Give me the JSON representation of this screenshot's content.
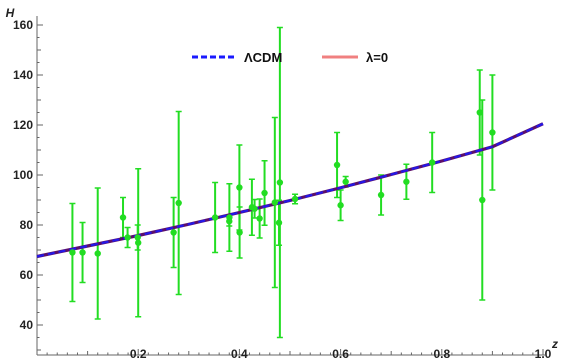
{
  "chart_data": {
    "type": "scatter",
    "title": "",
    "xlabel": "z",
    "ylabel": "H",
    "xlim": [
      0,
      1.0
    ],
    "ylim": [
      28,
      162
    ],
    "xticks": [
      0.2,
      0.4,
      0.6,
      0.8,
      1.0
    ],
    "xtick_labels": [
      "0.2",
      "0.4",
      "0.6",
      "0.8",
      "1.0"
    ],
    "yticks": [
      40,
      60,
      80,
      100,
      120,
      140,
      160
    ],
    "ytick_labels": [
      "40",
      "60",
      "80",
      "100",
      "120",
      "140",
      "160"
    ],
    "grid": false,
    "legend_position": "top-center",
    "colors": {
      "lcdm": "#1a1aff",
      "lambda0": "#f08080",
      "data": "#22dd22",
      "overlap": "#5c0f6a",
      "axis": "#666666"
    },
    "series": [
      {
        "name": "ΛCDM",
        "style": "dashed",
        "x": [
          0.0,
          0.1,
          0.2,
          0.3,
          0.4,
          0.5,
          0.6,
          0.7,
          0.8,
          0.9,
          1.0
        ],
        "y": [
          67.4,
          71.6,
          75.8,
          80.3,
          85.0,
          89.8,
          94.9,
          100.2,
          105.6,
          111.3,
          120.5
        ]
      },
      {
        "name": "λ=0",
        "style": "solid",
        "x": [
          0.0,
          0.1,
          0.2,
          0.3,
          0.4,
          0.5,
          0.6,
          0.7,
          0.8,
          0.9,
          1.0
        ],
        "y": [
          67.4,
          71.6,
          75.8,
          80.3,
          85.0,
          89.8,
          94.9,
          100.2,
          105.6,
          111.3,
          120.5
        ]
      }
    ],
    "observations": [
      {
        "z": 0.07,
        "H": 69.0,
        "err": 19.6
      },
      {
        "z": 0.09,
        "H": 69.0,
        "err": 12.0
      },
      {
        "z": 0.12,
        "H": 68.6,
        "err": 26.2
      },
      {
        "z": 0.17,
        "H": 83.0,
        "err": 8.0
      },
      {
        "z": 0.179,
        "H": 75.0,
        "err": 4.0
      },
      {
        "z": 0.199,
        "H": 75.0,
        "err": 5.0
      },
      {
        "z": 0.2,
        "H": 72.9,
        "err": 29.6
      },
      {
        "z": 0.27,
        "H": 77.0,
        "err": 14.0
      },
      {
        "z": 0.28,
        "H": 88.8,
        "err": 36.6
      },
      {
        "z": 0.352,
        "H": 83.0,
        "err": 14.0
      },
      {
        "z": 0.38,
        "H": 81.5,
        "err": 1.9
      },
      {
        "z": 0.3802,
        "H": 83.0,
        "err": 13.5
      },
      {
        "z": 0.4,
        "H": 95.0,
        "err": 17.0
      },
      {
        "z": 0.4004,
        "H": 77.0,
        "err": 10.2
      },
      {
        "z": 0.4247,
        "H": 87.1,
        "err": 11.2
      },
      {
        "z": 0.43,
        "H": 86.5,
        "err": 3.7
      },
      {
        "z": 0.44,
        "H": 82.6,
        "err": 7.8
      },
      {
        "z": 0.4497,
        "H": 92.8,
        "err": 12.9
      },
      {
        "z": 0.47,
        "H": 89.0,
        "err": 34.0
      },
      {
        "z": 0.4783,
        "H": 80.9,
        "err": 9.0
      },
      {
        "z": 0.48,
        "H": 97.0,
        "err": 62.0
      },
      {
        "z": 0.51,
        "H": 90.4,
        "err": 1.9
      },
      {
        "z": 0.593,
        "H": 104.0,
        "err": 13.0
      },
      {
        "z": 0.6,
        "H": 87.9,
        "err": 6.1
      },
      {
        "z": 0.61,
        "H": 97.3,
        "err": 2.1
      },
      {
        "z": 0.68,
        "H": 92.0,
        "err": 8.0
      },
      {
        "z": 0.73,
        "H": 97.3,
        "err": 7.0
      },
      {
        "z": 0.781,
        "H": 105.0,
        "err": 12.0
      },
      {
        "z": 0.875,
        "H": 125.0,
        "err": 17.0
      },
      {
        "z": 0.88,
        "H": 90.0,
        "err": 40.0
      },
      {
        "z": 0.9,
        "H": 117.0,
        "err": 23.0
      }
    ]
  }
}
